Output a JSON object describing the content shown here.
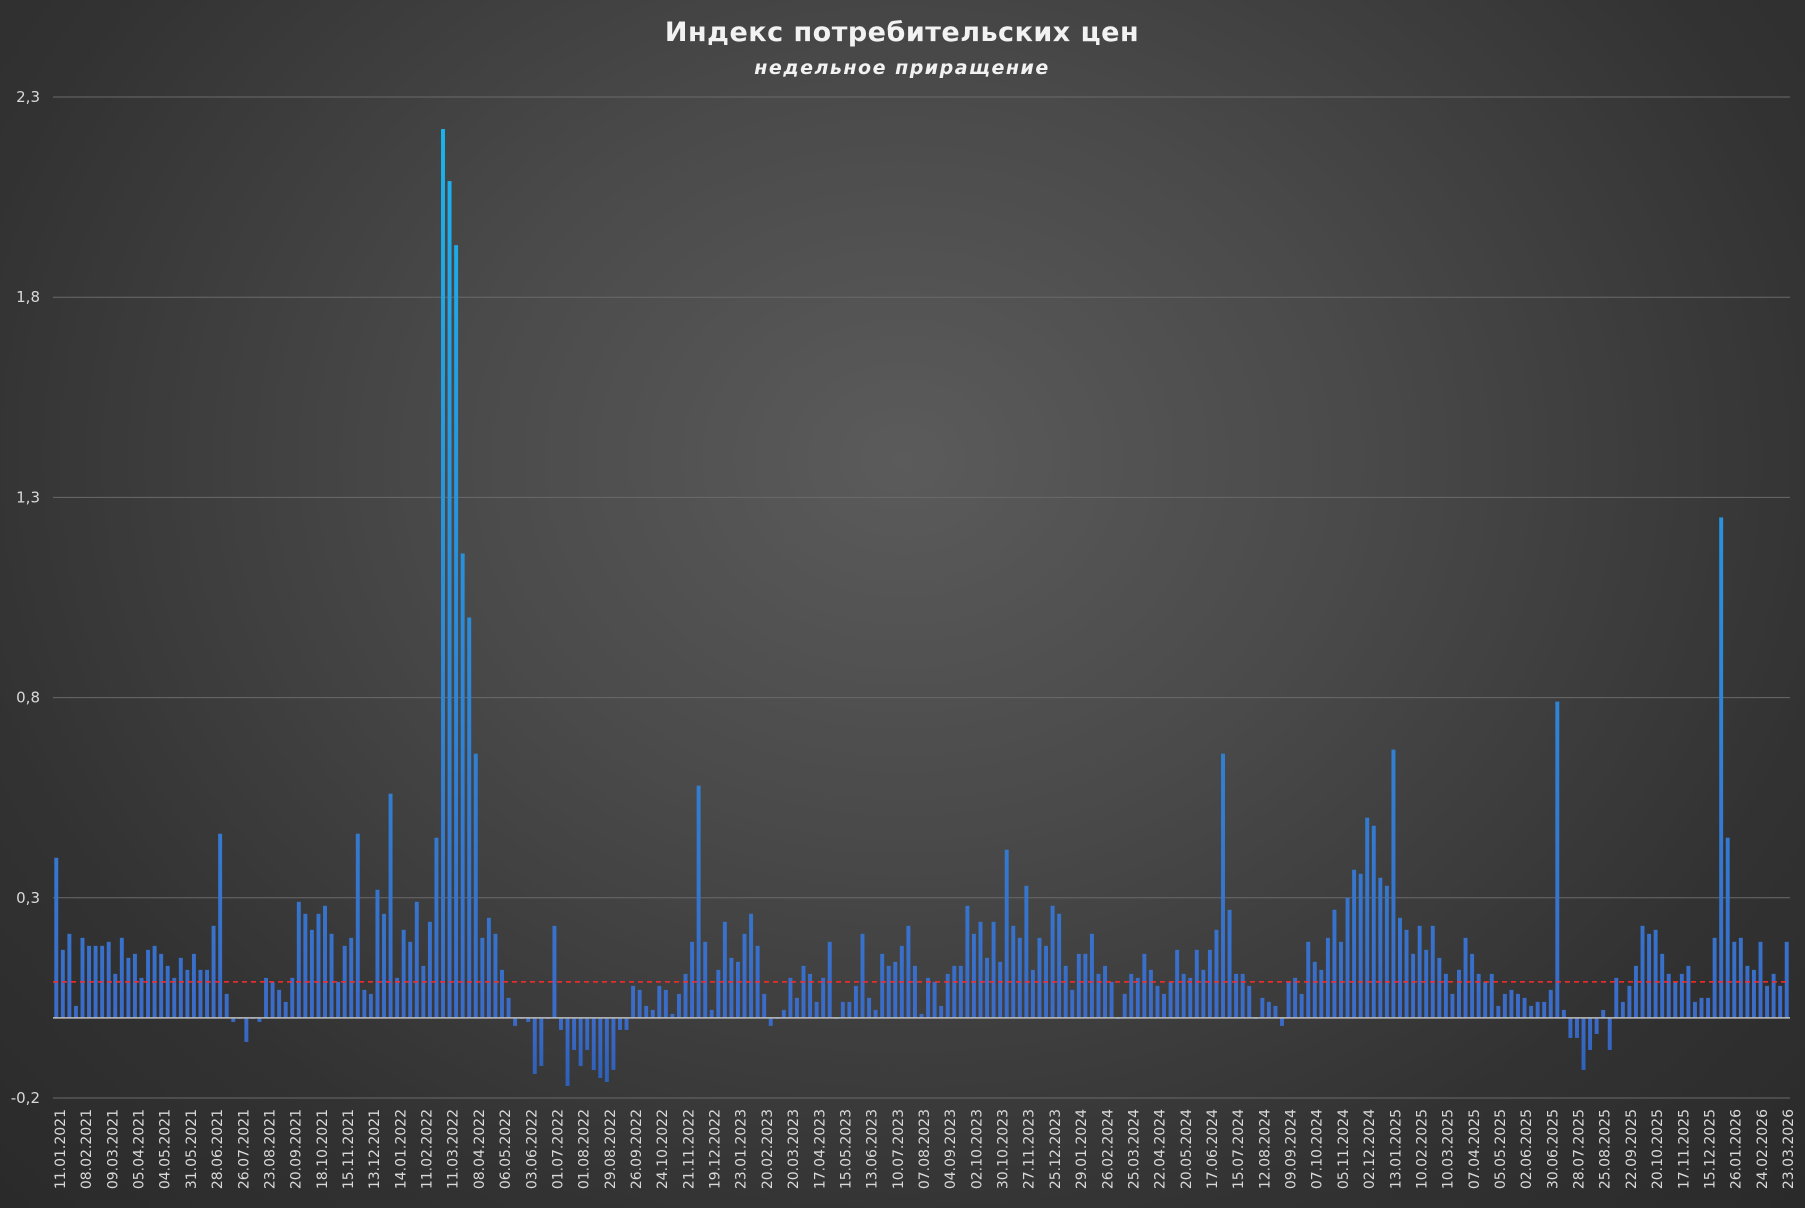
{
  "chart_data": {
    "type": "bar",
    "title": "Индекс потребительских цен",
    "subtitle": "недельное приращение",
    "xlabel": "",
    "ylabel": "",
    "ylim": [
      -0.2,
      2.3
    ],
    "yticks": [
      -0.2,
      0.3,
      0.8,
      1.3,
      1.8,
      2.3
    ],
    "ytick_labels": [
      "-0,2",
      "0,3",
      "0,8",
      "1,3",
      "1,8",
      "2,3"
    ],
    "grid": true,
    "legend": "none",
    "reference_line": {
      "value": 0.09,
      "style": "dashed",
      "color": "#ff2a2a"
    },
    "colors": {
      "bar_top": "#19b4ee",
      "bar_bottom": "#3a6bc8",
      "zero_line": "#bfbfbf"
    },
    "xtick_labels": [
      "11.01.2021",
      "08.02.2021",
      "09.03.2021",
      "05.04.2021",
      "04.05.2021",
      "31.05.2021",
      "28.06.2021",
      "26.07.2021",
      "23.08.2021",
      "20.09.2021",
      "18.10.2021",
      "15.11.2021",
      "13.12.2021",
      "14.01.2022",
      "11.02.2022",
      "11.03.2022",
      "08.04.2022",
      "06.05.2022",
      "03.06.2022",
      "01.07.2022",
      "01.08.2022",
      "29.08.2022",
      "26.09.2022",
      "24.10.2022",
      "21.11.2022",
      "19.12.2022",
      "23.01.2023",
      "20.02.2023",
      "20.03.2023",
      "17.04.2023",
      "15.05.2023",
      "13.06.2023",
      "10.07.2023",
      "07.08.2023",
      "04.09.2023",
      "02.10.2023",
      "30.10.2023",
      "27.11.2023",
      "25.12.2023",
      "29.01.2024",
      "26.02.2024",
      "25.03.2024",
      "22.04.2024",
      "20.05.2024",
      "17.06.2024",
      "15.07.2024",
      "12.08.2024",
      "09.09.2024",
      "07.10.2024",
      "05.11.2024",
      "02.12.2024",
      "13.01.2025",
      "10.02.2025",
      "10.03.2025",
      "07.04.2025",
      "05.05.2025",
      "02.06.2025",
      "30.06.2025",
      "28.07.2025",
      "25.08.2025",
      "22.09.2025",
      "20.10.2025",
      "17.11.2025",
      "15.12.2025",
      "26.01.2026",
      "24.02.2026",
      "23.03.2026"
    ],
    "values": [
      0.4,
      0.17,
      0.21,
      0.03,
      0.2,
      0.18,
      0.18,
      0.18,
      0.19,
      0.11,
      0.2,
      0.15,
      0.16,
      0.1,
      0.17,
      0.18,
      0.16,
      0.13,
      0.1,
      0.15,
      0.12,
      0.16,
      0.12,
      0.12,
      0.23,
      0.46,
      0.06,
      -0.01,
      0.0,
      -0.06,
      0.0,
      -0.01,
      0.1,
      0.09,
      0.07,
      0.04,
      0.1,
      0.29,
      0.26,
      0.22,
      0.26,
      0.28,
      0.21,
      0.09,
      0.18,
      0.2,
      0.46,
      0.07,
      0.06,
      0.32,
      0.26,
      0.56,
      0.1,
      0.22,
      0.19,
      0.29,
      0.13,
      0.24,
      0.45,
      2.22,
      2.09,
      1.93,
      1.16,
      1.0,
      0.66,
      0.2,
      0.25,
      0.21,
      0.12,
      0.05,
      -0.02,
      0.0,
      -0.01,
      -0.14,
      -0.12,
      0.0,
      0.23,
      -0.03,
      -0.17,
      -0.08,
      -0.12,
      -0.08,
      -0.13,
      -0.15,
      -0.16,
      -0.13,
      -0.03,
      -0.03,
      0.08,
      0.07,
      0.03,
      0.02,
      0.08,
      0.07,
      0.01,
      0.06,
      0.11,
      0.19,
      0.58,
      0.19,
      0.02,
      0.12,
      0.24,
      0.15,
      0.14,
      0.21,
      0.26,
      0.18,
      0.06,
      -0.02,
      0.0,
      0.02,
      0.1,
      0.05,
      0.13,
      0.11,
      0.04,
      0.1,
      0.19,
      0.0,
      0.04,
      0.04,
      0.08,
      0.21,
      0.05,
      0.02,
      0.16,
      0.13,
      0.14,
      0.18,
      0.23,
      0.13,
      0.01,
      0.1,
      0.09,
      0.03,
      0.11,
      0.13,
      0.13,
      0.28,
      0.21,
      0.24,
      0.15,
      0.24,
      0.14,
      0.42,
      0.23,
      0.2,
      0.33,
      0.12,
      0.2,
      0.18,
      0.28,
      0.26,
      0.13,
      0.07,
      0.16,
      0.16,
      0.21,
      0.11,
      0.13,
      0.09,
      0.0,
      0.06,
      0.11,
      0.1,
      0.16,
      0.12,
      0.08,
      0.06,
      0.09,
      0.17,
      0.11,
      0.1,
      0.17,
      0.12,
      0.17,
      0.22,
      0.66,
      0.27,
      0.11,
      0.11,
      0.08,
      0.0,
      0.05,
      0.04,
      0.03,
      -0.02,
      0.09,
      0.1,
      0.06,
      0.19,
      0.14,
      0.12,
      0.2,
      0.27,
      0.19,
      0.3,
      0.37,
      0.36,
      0.5,
      0.48,
      0.35,
      0.33,
      0.67,
      0.25,
      0.22,
      0.16,
      0.23,
      0.17,
      0.23,
      0.15,
      0.11,
      0.06,
      0.12,
      0.2,
      0.16,
      0.11,
      0.09,
      0.11,
      0.03,
      0.06,
      0.07,
      0.06,
      0.05,
      0.03,
      0.04,
      0.04,
      0.07,
      0.79,
      0.02,
      -0.05,
      -0.05,
      -0.13,
      -0.08,
      -0.04,
      0.02,
      -0.08,
      0.1,
      0.04,
      0.08,
      0.13,
      0.23,
      0.21,
      0.22,
      0.16,
      0.11,
      0.09,
      0.11,
      0.13,
      0.04,
      0.05,
      0.05,
      0.2,
      1.25,
      0.45,
      0.19,
      0.2,
      0.13,
      0.12,
      0.19,
      0.08,
      0.11,
      0.08,
      0.19
    ]
  }
}
